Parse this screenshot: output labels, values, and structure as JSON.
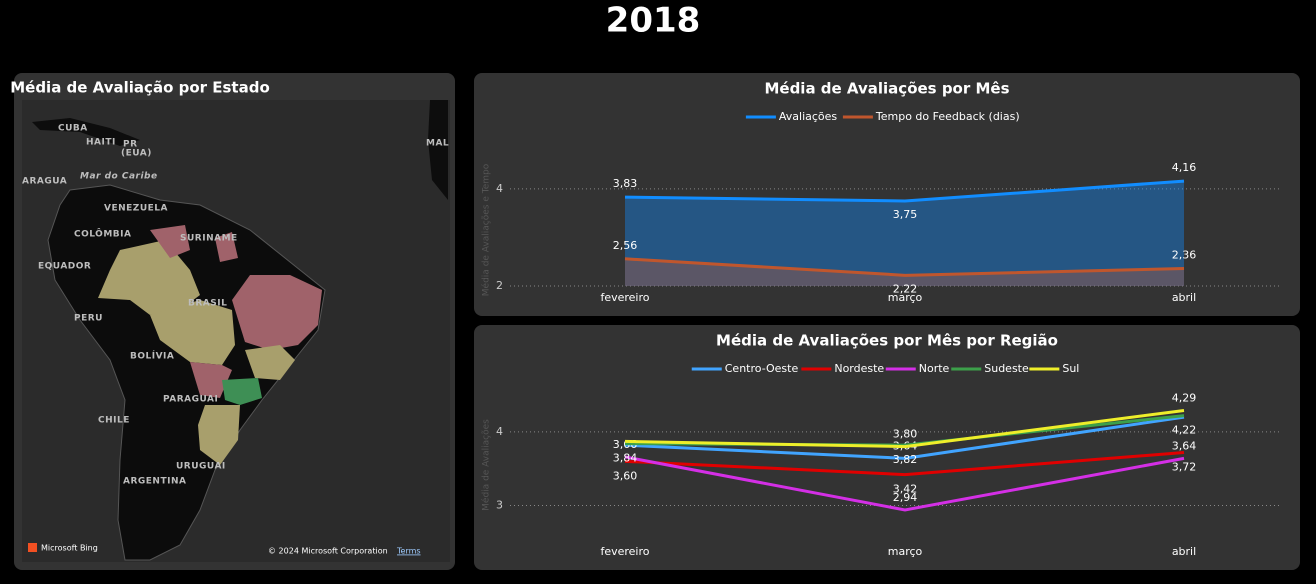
{
  "title": "2018",
  "map": {
    "title": "Média de Avaliação por Estado",
    "labels": [
      "CUBA",
      "HAITI",
      "PR",
      "(EUA)",
      "ARAGUA",
      "Mar do Caribe",
      "VENEZUELA",
      "COLÔMBIA",
      "SURINAME",
      "EQUADOR",
      "BRASIL",
      "PERU",
      "BOLÍVIA",
      "CHILE",
      "PARAGUAI",
      "URUGUAI",
      "ARGENTINA",
      "MAL"
    ],
    "attribution": "Microsoft Bing",
    "copyright": "© 2024 Microsoft Corporation",
    "terms": "Terms"
  },
  "chart_data": [
    {
      "type": "area",
      "title": "Média de Avaliações por Mês",
      "y_label": "Média de Avaliações e Tempo",
      "categories": [
        "fevereiro",
        "março",
        "abril"
      ],
      "series": [
        {
          "name": "Avaliações",
          "color": "#118dff",
          "values": [
            3.83,
            3.75,
            4.16
          ],
          "value_labels": [
            "3,83",
            "3,75",
            "4,16"
          ]
        },
        {
          "name": "Tempo do Feedback (dias)",
          "color": "#c0562d",
          "values": [
            2.56,
            2.22,
            2.36
          ],
          "value_labels": [
            "2,56",
            "2,22",
            "2,36"
          ]
        }
      ],
      "ylim": [
        2,
        4.8
      ],
      "yticks": [
        2,
        4
      ],
      "grid": true,
      "legend": "top"
    },
    {
      "type": "line",
      "title": "Média de Avaliações por Mês por Região",
      "y_label": "Média de Avaliações",
      "categories": [
        "fevereiro",
        "março",
        "abril"
      ],
      "series": [
        {
          "name": "Centro-Oeste",
          "color": "#41a4ff",
          "values": [
            3.82,
            3.64,
            4.2
          ],
          "value_labels": [
            null,
            "3,64",
            null
          ]
        },
        {
          "name": "Nordeste",
          "color": "#e00000",
          "values": [
            3.6,
            3.42,
            3.72
          ],
          "value_labels": [
            "3,60",
            "3,42",
            "3,72"
          ]
        },
        {
          "name": "Norte",
          "color": "#d42fe6",
          "values": [
            3.66,
            2.94,
            3.64
          ],
          "value_labels": [
            "3,66",
            "2,94",
            "3,64"
          ]
        },
        {
          "name": "Sudeste",
          "color": "#3ca04a",
          "values": [
            3.84,
            3.82,
            4.22
          ],
          "value_labels": [
            "3,84",
            "3,82",
            "4,22"
          ]
        },
        {
          "name": "Sul",
          "color": "#eeee2a",
          "values": [
            3.87,
            3.8,
            4.29
          ],
          "value_labels": [
            null,
            "3,80",
            "4,29"
          ]
        }
      ],
      "ylim": [
        2.6,
        4.5
      ],
      "yticks": [
        3,
        4
      ],
      "grid": true,
      "legend": "top"
    }
  ]
}
